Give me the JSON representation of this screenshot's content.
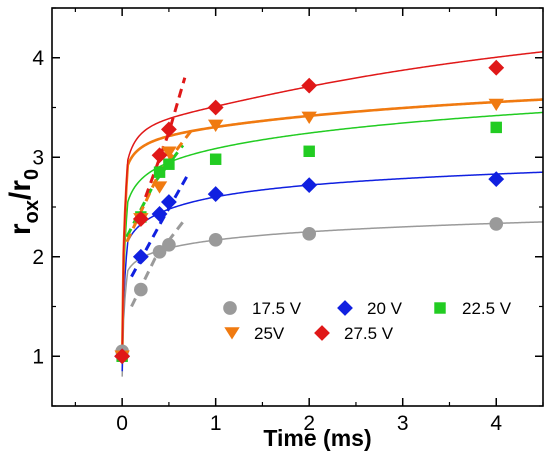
{
  "chart_data": {
    "type": "scatter",
    "title": "",
    "xlabel": "Time (ms)",
    "ylabel_main": "r",
    "ylabel_sub1": "ox",
    "ylabel_mid": "/r",
    "ylabel_sub2": "0",
    "xlim": [
      -0.75,
      4.5
    ],
    "ylim": [
      0.5,
      4.5
    ],
    "xticks": [
      0,
      1,
      2,
      3,
      4
    ],
    "yticks": [
      1,
      2,
      3,
      4
    ],
    "grid": false,
    "legend_position": "bottom-right",
    "series": [
      {
        "name": "17.5 V",
        "color": "#9a9a9a",
        "marker": "circle",
        "points": [
          [
            0,
            1.05
          ],
          [
            0.2,
            1.67
          ],
          [
            0.4,
            2.05
          ],
          [
            0.5,
            2.12
          ],
          [
            1,
            2.17
          ],
          [
            2,
            2.23
          ],
          [
            4,
            2.33
          ]
        ],
        "fit_curve": {
          "ymin": 0.55,
          "y_knee": 1.86,
          "y1": 2.17,
          "y_end": 2.35
        },
        "fit_dashed": [
          [
            0.1,
            1.5
          ],
          [
            0.35,
            1.98
          ],
          [
            0.65,
            2.35
          ]
        ]
      },
      {
        "name": "20 V",
        "color": "#1020e0",
        "marker": "diamond",
        "points": [
          [
            0,
            1.0
          ],
          [
            0.2,
            2.0
          ],
          [
            0.4,
            2.43
          ],
          [
            0.5,
            2.55
          ],
          [
            1,
            2.63
          ],
          [
            2,
            2.72
          ],
          [
            4,
            2.78
          ]
        ],
        "fit_curve": {
          "ymin": 0.55,
          "y_knee": 2.15,
          "y1": 2.62,
          "y_end": 2.85
        },
        "fit_dashed": [
          [
            0.1,
            1.8
          ],
          [
            0.4,
            2.32
          ],
          [
            0.7,
            2.82
          ]
        ]
      },
      {
        "name": "22.5 V",
        "color": "#22cc22",
        "marker": "square",
        "points": [
          [
            0,
            1.0
          ],
          [
            0.2,
            2.4
          ],
          [
            0.4,
            2.85
          ],
          [
            0.5,
            2.93
          ],
          [
            1,
            2.98
          ],
          [
            2,
            3.06
          ],
          [
            4,
            3.3
          ]
        ],
        "fit_curve": {
          "ymin": 0.55,
          "y_knee": 2.55,
          "y1": 3.07,
          "y_end": 3.45
        },
        "fit_dashed": [
          [
            0.05,
            2.2
          ],
          [
            0.35,
            2.75
          ],
          [
            0.65,
            3.12
          ]
        ]
      },
      {
        "name": "25V",
        "color": "#f07a10",
        "marker": "triangle-down",
        "points": [
          [
            0,
            1.0
          ],
          [
            0.2,
            2.38
          ],
          [
            0.4,
            2.7
          ],
          [
            0.5,
            3.05
          ],
          [
            1,
            3.32
          ],
          [
            2,
            3.4
          ],
          [
            4,
            3.53
          ]
        ],
        "fit_curve": {
          "ymin": 0.55,
          "y_knee": 2.92,
          "y1": 3.27,
          "y_end": 3.58
        },
        "fit_dashed": [
          [
            0.05,
            2.15
          ],
          [
            0.4,
            2.85
          ],
          [
            0.75,
            3.28
          ]
        ]
      },
      {
        "name": "27.5 V",
        "color": "#e01818",
        "marker": "diamond",
        "points": [
          [
            0,
            1.0
          ],
          [
            0.2,
            2.38
          ],
          [
            0.4,
            3.02
          ],
          [
            0.5,
            3.28
          ],
          [
            1,
            3.5
          ],
          [
            2,
            3.72
          ],
          [
            4,
            3.9
          ]
        ],
        "fit_curve": {
          "ymin": 0.55,
          "y_knee": 2.97,
          "y1": 3.4,
          "y_end": 4.06
        },
        "fit_dashed": [
          [
            0.25,
            2.6
          ],
          [
            0.5,
            3.25
          ],
          [
            0.67,
            3.8
          ]
        ]
      }
    ],
    "legend_rows": [
      [
        "17.5 V",
        "20 V",
        "22.5 V"
      ],
      [
        "25V",
        "27.5 V"
      ]
    ]
  }
}
